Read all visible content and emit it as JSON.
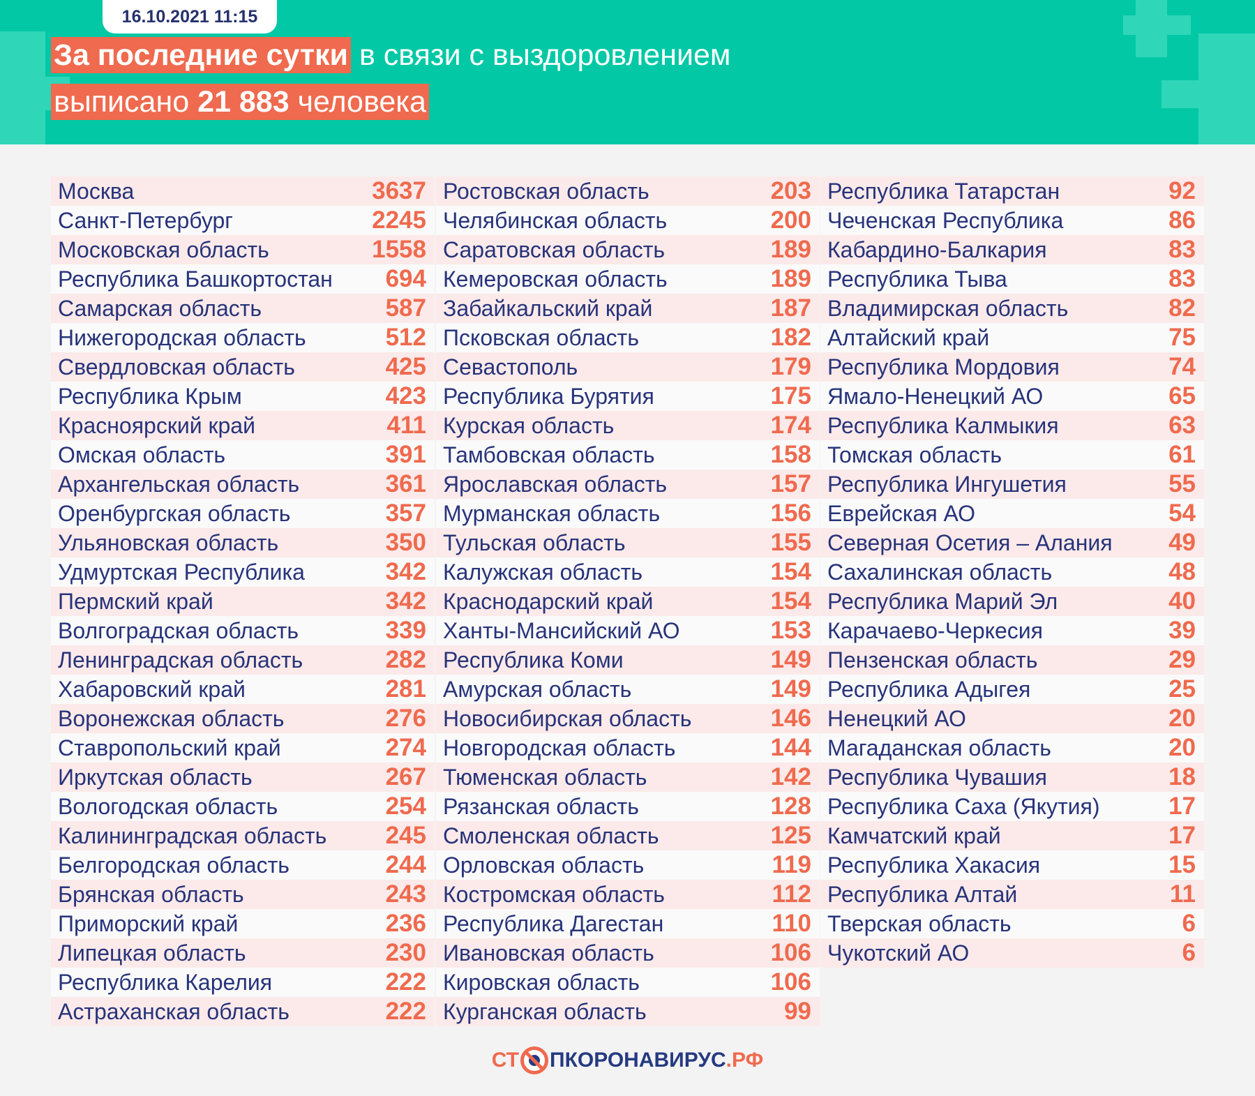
{
  "header": {
    "date": "16.10.2021 11:15",
    "highlight": "За последние сутки",
    "line1_rest": "в связи с выздоровлением",
    "line2_pre": "выписано",
    "count": "21 883",
    "line2_post": "человека"
  },
  "columns": [
    [
      [
        "Москва",
        "3637"
      ],
      [
        "Санкт-Петербург",
        "2245"
      ],
      [
        "Московская область",
        "1558"
      ],
      [
        "Республика Башкортостан",
        "694"
      ],
      [
        "Самарская область",
        "587"
      ],
      [
        "Нижегородская область",
        "512"
      ],
      [
        "Свердловская область",
        "425"
      ],
      [
        "Республика Крым",
        "423"
      ],
      [
        "Красноярский край",
        "411"
      ],
      [
        "Омская область",
        "391"
      ],
      [
        "Архангельская область",
        "361"
      ],
      [
        "Оренбургская область",
        "357"
      ],
      [
        "Ульяновская область",
        "350"
      ],
      [
        "Удмуртская Республика",
        "342"
      ],
      [
        "Пермский край",
        "342"
      ],
      [
        "Волгоградская область",
        "339"
      ],
      [
        "Ленинградская область",
        "282"
      ],
      [
        "Хабаровский край",
        "281"
      ],
      [
        "Воронежская область",
        "276"
      ],
      [
        "Ставропольский край",
        "274"
      ],
      [
        "Иркутская область",
        "267"
      ],
      [
        "Вологодская область",
        "254"
      ],
      [
        "Калининградская область",
        "245"
      ],
      [
        "Белгородская область",
        "244"
      ],
      [
        "Брянская область",
        "243"
      ],
      [
        "Приморский край",
        "236"
      ],
      [
        "Липецкая область",
        "230"
      ],
      [
        "Республика Карелия",
        "222"
      ],
      [
        "Астраханская область",
        "222"
      ]
    ],
    [
      [
        "Ростовская область",
        "203"
      ],
      [
        "Челябинская область",
        "200"
      ],
      [
        "Саратовская область",
        "189"
      ],
      [
        "Кемеровская область",
        "189"
      ],
      [
        "Забайкальский край",
        "187"
      ],
      [
        "Псковская область",
        "182"
      ],
      [
        "Севастополь",
        "179"
      ],
      [
        "Республика Бурятия",
        "175"
      ],
      [
        "Курская область",
        "174"
      ],
      [
        "Тамбовская область",
        "158"
      ],
      [
        "Ярославская область",
        "157"
      ],
      [
        "Мурманская область",
        "156"
      ],
      [
        "Тульская область",
        "155"
      ],
      [
        "Калужская область",
        "154"
      ],
      [
        "Краснодарский край",
        "154"
      ],
      [
        "Ханты-Мансийский АО",
        "153"
      ],
      [
        "Республика Коми",
        "149"
      ],
      [
        "Амурская область",
        "149"
      ],
      [
        "Новосибирская область",
        "146"
      ],
      [
        "Новгородская область",
        "144"
      ],
      [
        "Тюменская область",
        "142"
      ],
      [
        "Рязанская область",
        "128"
      ],
      [
        "Смоленская область",
        "125"
      ],
      [
        "Орловская область",
        "119"
      ],
      [
        "Костромская область",
        "112"
      ],
      [
        "Республика Дагестан",
        "110"
      ],
      [
        "Ивановская область",
        "106"
      ],
      [
        "Кировская область",
        "106"
      ],
      [
        "Курганская область",
        "99"
      ]
    ],
    [
      [
        "Республика Татарстан",
        "92"
      ],
      [
        "Чеченская Республика",
        "86"
      ],
      [
        "Кабардино-Балкария",
        "83"
      ],
      [
        "Республика Тыва",
        "83"
      ],
      [
        "Владимирская область",
        "82"
      ],
      [
        "Алтайский край",
        "75"
      ],
      [
        "Республика Мордовия",
        "74"
      ],
      [
        "Ямало-Ненецкий АО",
        "65"
      ],
      [
        "Республика Калмыкия",
        "63"
      ],
      [
        "Томская область",
        "61"
      ],
      [
        "Республика Ингушетия",
        "55"
      ],
      [
        "Еврейская АО",
        "54"
      ],
      [
        "Северная Осетия – Алания",
        "49"
      ],
      [
        "Сахалинская область",
        "48"
      ],
      [
        "Республика Марий Эл",
        "40"
      ],
      [
        "Карачаево-Черкесия",
        "39"
      ],
      [
        "Пензенская область",
        "29"
      ],
      [
        "Республика Адыгея",
        "25"
      ],
      [
        "Ненецкий АО",
        "20"
      ],
      [
        "Магаданская область",
        "20"
      ],
      [
        "Республика Чувашия",
        "18"
      ],
      [
        "Республика Саха (Якутия)",
        "17"
      ],
      [
        "Камчатский край",
        "17"
      ],
      [
        "Республика Хакасия",
        "15"
      ],
      [
        "Республика Алтай",
        "11"
      ],
      [
        "Тверская область",
        "6"
      ],
      [
        "Чукотский АО",
        "6"
      ]
    ]
  ],
  "footer": {
    "logo_pre": "СТ",
    "logo_main": "ПКОРОНАВИРУС",
    "logo_suffix": ".РФ",
    "logo_icon": "crossed-virus-icon"
  },
  "colors": {
    "teal": "#03c8a5",
    "accent": "#ef6a4e",
    "navy": "#27337a"
  }
}
